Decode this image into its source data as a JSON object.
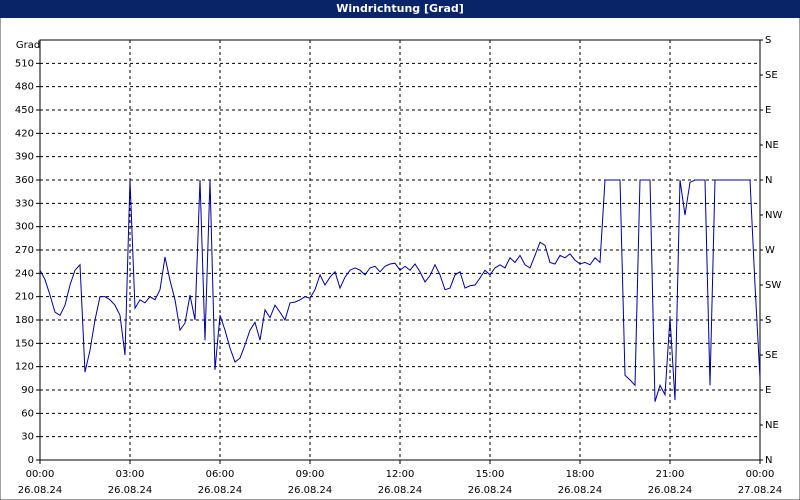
{
  "chart_data": {
    "type": "line",
    "title": "Windrichtung [Grad]",
    "y_label": "Grad",
    "x": [
      0,
      10,
      20,
      30,
      40,
      50,
      60,
      70,
      80,
      90,
      100,
      110,
      120,
      130,
      140,
      150,
      160,
      170,
      180,
      190,
      200,
      210,
      220,
      230,
      240,
      250,
      260,
      270,
      280,
      290,
      300,
      310,
      320,
      330,
      340,
      350,
      360,
      370,
      380,
      390,
      400,
      410,
      420,
      430,
      440,
      450,
      460,
      470,
      480,
      490,
      500,
      510,
      520,
      530,
      540,
      550,
      560,
      570,
      580,
      590,
      600,
      610,
      620,
      630,
      640,
      650,
      660,
      670,
      680,
      690,
      700,
      710,
      720,
      730,
      740,
      750,
      760,
      770,
      780,
      790,
      800,
      810,
      820,
      830,
      840,
      850,
      860,
      870,
      880,
      890,
      900,
      910,
      920,
      930,
      940,
      950,
      960,
      970,
      980,
      990,
      1000,
      1010,
      1020,
      1030,
      1040,
      1050,
      1060,
      1070,
      1080,
      1090,
      1100,
      1110,
      1120,
      1130,
      1140,
      1150,
      1160,
      1170,
      1180,
      1190,
      1200,
      1210,
      1220,
      1230,
      1240,
      1250,
      1260,
      1270,
      1280,
      1290,
      1300,
      1310,
      1320,
      1330,
      1340,
      1350,
      1360,
      1370,
      1380,
      1390,
      1400,
      1410,
      1420,
      1430,
      1440
    ],
    "series": [
      {
        "color": "#0000a0",
        "values": [
          244,
          232,
          212,
          190,
          186,
          199,
          225,
          244,
          251,
          113,
          141,
          180,
          210,
          210,
          206,
          199,
          186,
          135,
          360,
          195,
          206,
          202,
          210,
          206,
          219,
          261,
          231,
          206,
          167,
          176,
          212,
          180,
          360,
          154,
          360,
          116,
          186,
          167,
          144,
          126,
          131,
          148,
          167,
          177,
          154,
          193,
          183,
          199,
          190,
          180,
          202,
          203,
          206,
          210,
          208,
          219,
          238,
          225,
          235,
          242,
          221,
          235,
          244,
          247,
          244,
          238,
          247,
          249,
          242,
          249,
          252,
          253,
          244,
          249,
          244,
          252,
          242,
          229,
          237,
          251,
          238,
          219,
          221,
          238,
          242,
          221,
          224,
          225,
          234,
          244,
          238,
          247,
          251,
          247,
          260,
          254,
          263,
          251,
          247,
          263,
          280,
          276,
          254,
          252,
          263,
          260,
          265,
          257,
          252,
          254,
          251,
          260,
          254,
          360,
          360,
          360,
          360,
          109,
          103,
          96,
          360,
          360,
          360,
          75,
          96,
          84,
          183,
          77,
          360,
          315,
          357,
          360,
          360,
          360,
          96,
          360,
          360,
          360,
          360,
          360,
          360,
          360,
          360,
          225,
          105
        ]
      }
    ],
    "xlim": [
      0,
      1440
    ],
    "xticks": [
      {
        "value": 0,
        "label": "00:00",
        "date": "26.08.24"
      },
      {
        "value": 180,
        "label": "03:00",
        "date": "26.08.24"
      },
      {
        "value": 360,
        "label": "06:00",
        "date": "26.08.24"
      },
      {
        "value": 540,
        "label": "09:00",
        "date": "26.08.24"
      },
      {
        "value": 720,
        "label": "12:00",
        "date": "26.08.24"
      },
      {
        "value": 900,
        "label": "15:00",
        "date": "26.08.24"
      },
      {
        "value": 1080,
        "label": "18:00",
        "date": "26.08.24"
      },
      {
        "value": 1260,
        "label": "21:00",
        "date": "26.08.24"
      },
      {
        "value": 1440,
        "label": "00:00",
        "date": "27.08.24"
      }
    ],
    "ylim": [
      0,
      540
    ],
    "yticks": [
      0,
      30,
      60,
      90,
      120,
      150,
      180,
      210,
      240,
      270,
      300,
      330,
      360,
      390,
      420,
      450,
      480,
      510
    ],
    "y2lim": [
      0,
      540
    ],
    "y2ticks": [
      {
        "value": 0,
        "label": "N"
      },
      {
        "value": 45,
        "label": "NE"
      },
      {
        "value": 90,
        "label": "E"
      },
      {
        "value": 135,
        "label": "SE"
      },
      {
        "value": 180,
        "label": "S"
      },
      {
        "value": 225,
        "label": "SW"
      },
      {
        "value": 270,
        "label": "W"
      },
      {
        "value": 315,
        "label": "NW"
      },
      {
        "value": 360,
        "label": "N"
      },
      {
        "value": 405,
        "label": "NE"
      },
      {
        "value": 450,
        "label": "E"
      },
      {
        "value": 495,
        "label": "SE"
      },
      {
        "value": 540,
        "label": "S"
      }
    ],
    "grid": true
  }
}
